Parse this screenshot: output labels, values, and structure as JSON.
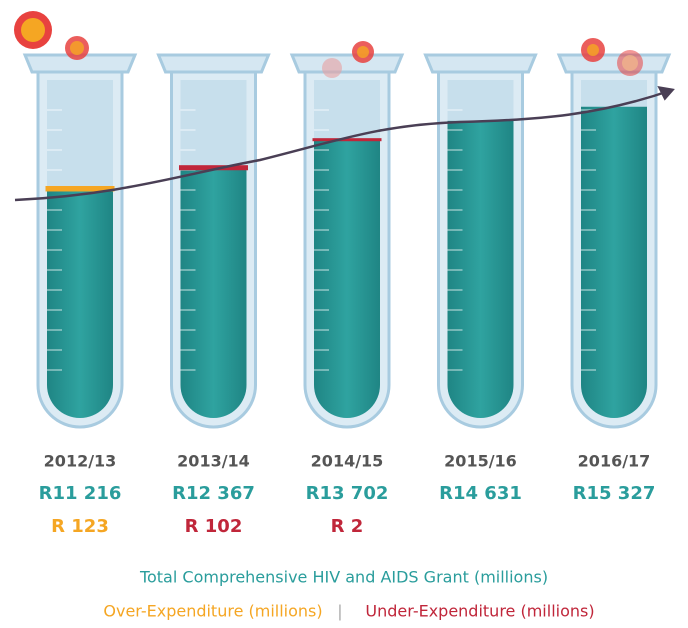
{
  "chart_data": {
    "type": "bar",
    "categories": [
      "2012/13",
      "2013/14",
      "2014/15",
      "2015/16",
      "2016/17"
    ],
    "series": [
      {
        "name": "Total Comprehensive HIV and AIDS Grant (millions)",
        "color": "#2a9d9c",
        "values": [
          11216,
          12367,
          13702,
          14631,
          15327
        ],
        "value_labels": [
          "R11 216",
          "R12 367",
          "R13 702",
          "R14 631",
          "R15 327"
        ]
      },
      {
        "name": "Over-Expenditure (millions)",
        "color": "#f5a623",
        "values": [
          123,
          null,
          null,
          null,
          null
        ],
        "value_labels": [
          "R 123",
          null,
          null,
          null,
          null
        ]
      },
      {
        "name": "Under-Expenditure (millions)",
        "color": "#c0263a",
        "values": [
          null,
          102,
          2,
          null,
          null
        ],
        "value_labels": [
          null,
          "R 102",
          "R 2",
          null,
          null
        ]
      }
    ],
    "legend_separator": "|"
  }
}
